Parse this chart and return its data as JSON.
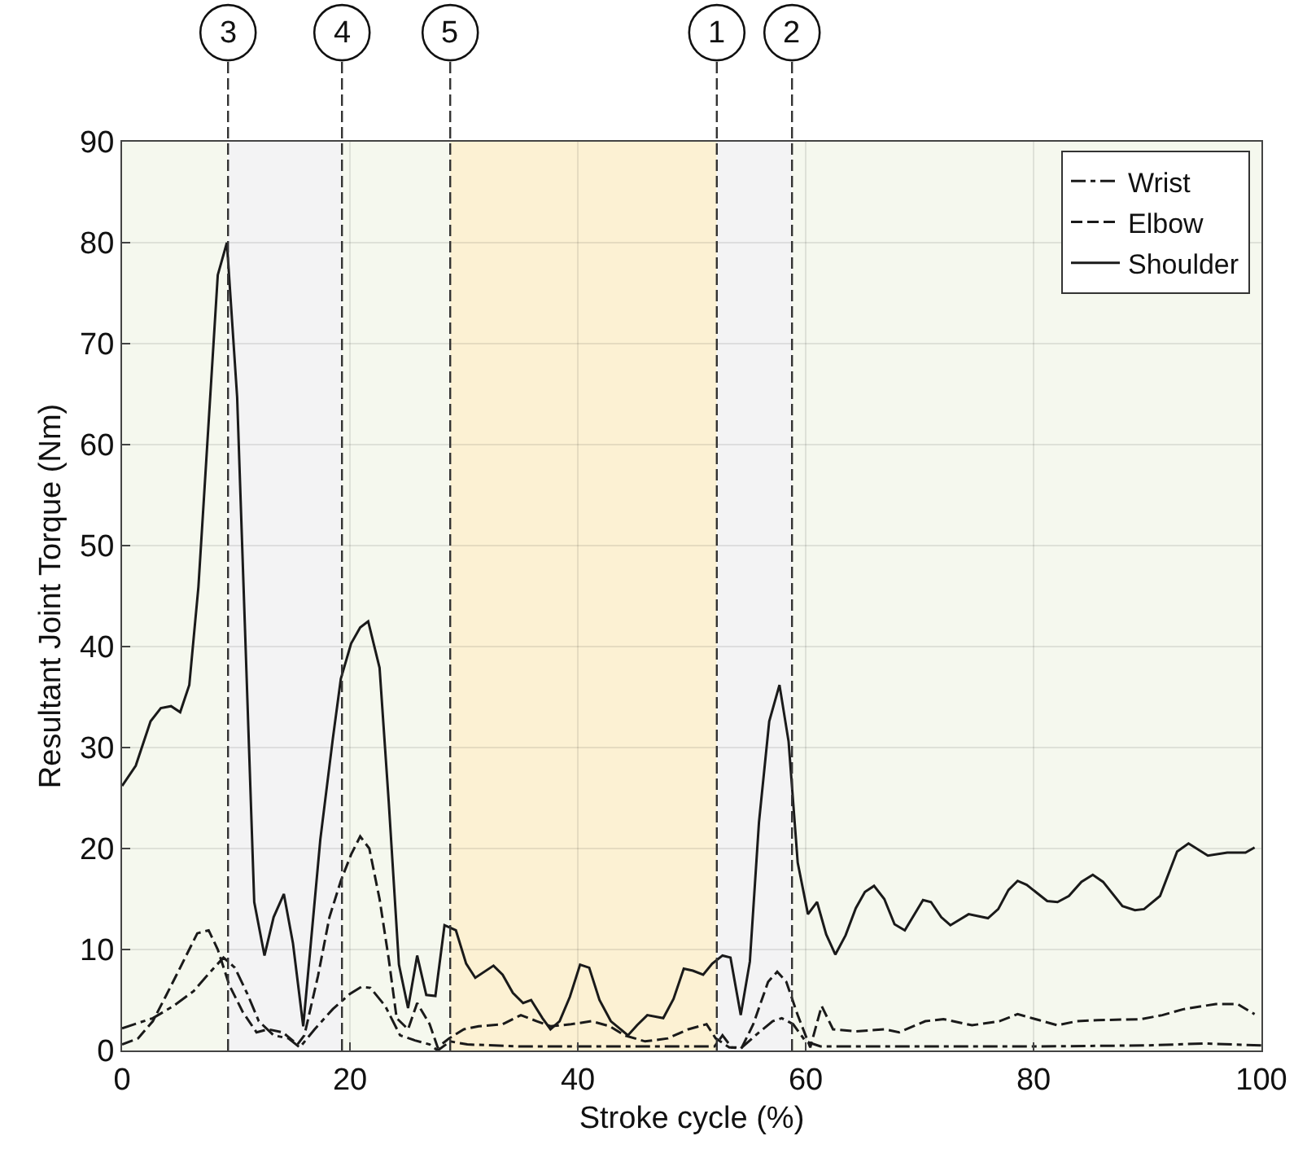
{
  "chart_data": {
    "type": "line",
    "xlabel": "Stroke cycle (%)",
    "ylabel": "Resultant Joint Torque (Nm)",
    "xlim": [
      0,
      100
    ],
    "ylim": [
      0,
      90
    ],
    "xticks": [
      0,
      20,
      40,
      60,
      80,
      100
    ],
    "yticks": [
      0,
      10,
      20,
      30,
      40,
      50,
      60,
      70,
      80,
      90
    ],
    "grid": true,
    "legend": "top right",
    "marker": "none",
    "series": [
      {
        "name": "Wrist",
        "color": "#1a1a1a",
        "line_style": "dashdot",
        "x": [
          0,
          2.7,
          4.5,
          6.3,
          7.6,
          8.9,
          9.9,
          11.0,
          12.0,
          13.3,
          14.6,
          15.6,
          16.9,
          18.5,
          20.0,
          21.0,
          21.8,
          23.1,
          24.4,
          25.7,
          27.0,
          27.7,
          28.8,
          30.3,
          35,
          40,
          45,
          50,
          52,
          52.7,
          53.5,
          54.3,
          55.6,
          57.1,
          57.9,
          58.9,
          60.0,
          61.3,
          70,
          80,
          90,
          95,
          100
        ],
        "values": [
          2.2,
          3.2,
          4.4,
          5.9,
          7.6,
          9.2,
          8.2,
          5.6,
          2.9,
          1.5,
          1.2,
          0.3,
          2.1,
          4.1,
          5.6,
          6.3,
          6.2,
          4.4,
          1.5,
          1.0,
          0.6,
          0,
          0.9,
          0.6,
          0.4,
          0.4,
          0.4,
          0.4,
          0.4,
          1.5,
          0.3,
          0.2,
          1.5,
          2.9,
          3.2,
          2.6,
          0.9,
          0.4,
          0.4,
          0.4,
          0.5,
          0.7,
          0.5
        ]
      },
      {
        "name": "Elbow",
        "color": "#1a1a1a",
        "line_style": "dashed",
        "x": [
          0,
          1.4,
          2.7,
          3.8,
          5.1,
          6.6,
          7.6,
          8.4,
          9.4,
          10.6,
          11.8,
          12.8,
          14.1,
          15.4,
          16.0,
          17.2,
          18.2,
          19.2,
          20.1,
          20.9,
          21.7,
          22.6,
          23.4,
          24.1,
          25.1,
          25.9,
          27.0,
          27.7,
          28.7,
          30.0,
          31.3,
          33.4,
          35.0,
          36.4,
          37.6,
          39.4,
          41.2,
          42.8,
          44.1,
          45.9,
          47.9,
          49.7,
          51.3,
          52.1,
          53.3,
          54.4,
          55.4,
          56.7,
          57.5,
          58.3,
          59.3,
          60.4,
          61.4,
          62.4,
          64.4,
          66.9,
          68.2,
          70.5,
          72.1,
          74.6,
          77.0,
          78.6,
          80.5,
          82.1,
          83.8,
          85.6,
          89.4,
          91.3,
          93.2,
          96.0,
          97.9,
          99.4
        ],
        "values": [
          0.6,
          1.2,
          2.9,
          5.3,
          8.2,
          11.6,
          11.9,
          10.0,
          6.5,
          3.8,
          1.8,
          2.1,
          1.8,
          0.6,
          1.5,
          7.4,
          13.2,
          16.8,
          19.4,
          21.2,
          20.0,
          15.0,
          9.1,
          3.2,
          2.1,
          4.7,
          2.6,
          0.3,
          1.2,
          2.1,
          2.4,
          2.6,
          3.5,
          2.9,
          2.4,
          2.6,
          2.9,
          2.4,
          1.5,
          0.9,
          1.2,
          2.1,
          2.6,
          1.2,
          0.3,
          0.3,
          2.6,
          6.8,
          7.8,
          6.8,
          3.5,
          0.3,
          4.4,
          2.1,
          1.9,
          2.1,
          1.8,
          2.9,
          3.1,
          2.5,
          2.9,
          3.6,
          3.0,
          2.5,
          2.9,
          3.0,
          3.1,
          3.5,
          4.1,
          4.6,
          4.6,
          3.6
        ]
      },
      {
        "name": "Shoulder",
        "color": "#1a1a1a",
        "line_style": "solid",
        "x": [
          0,
          1.2,
          2.5,
          3.4,
          4.3,
          5.1,
          5.9,
          6.7,
          8.4,
          9.2,
          10.1,
          11.6,
          12.5,
          13.3,
          14.2,
          15.0,
          15.9,
          17.4,
          18.5,
          19.2,
          20.1,
          20.9,
          21.6,
          22.6,
          23.4,
          24.3,
          25.1,
          25.9,
          26.7,
          27.5,
          28.3,
          29.3,
          30.2,
          31.0,
          32.6,
          33.4,
          34.3,
          35.2,
          35.9,
          36.9,
          37.6,
          38.4,
          39.3,
          40.2,
          41.0,
          41.9,
          42.9,
          44.4,
          45.2,
          46.1,
          47.5,
          48.4,
          49.3,
          50.1,
          51.0,
          51.8,
          52.7,
          53.4,
          54.3,
          55.1,
          55.9,
          56.8,
          57.7,
          58.5,
          59.3,
          60.2,
          61.0,
          61.8,
          62.6,
          63.5,
          64.4,
          65.2,
          66.0,
          66.9,
          67.8,
          68.7,
          70.3,
          71.0,
          71.9,
          72.7,
          74.3,
          76.0,
          76.9,
          77.8,
          78.6,
          79.4,
          81.2,
          82.1,
          83.1,
          84.2,
          85.2,
          86.1,
          87.8,
          88.9,
          89.7,
          91.1,
          92.6,
          93.6,
          95.3,
          97.0,
          98.6,
          99.4
        ],
        "values": [
          26.2,
          28.2,
          32.6,
          33.9,
          34.1,
          33.5,
          36.2,
          45.9,
          76.8,
          80.0,
          64.7,
          14.7,
          9.4,
          13.2,
          15.5,
          10.6,
          2.4,
          20.9,
          30.9,
          36.8,
          40.3,
          41.9,
          42.5,
          37.9,
          24.7,
          8.5,
          4.2,
          9.4,
          5.5,
          5.4,
          12.4,
          11.9,
          8.6,
          7.2,
          8.4,
          7.5,
          5.7,
          4.7,
          5.0,
          3.2,
          2.1,
          2.9,
          5.3,
          8.5,
          8.2,
          5.0,
          2.9,
          1.5,
          2.5,
          3.5,
          3.2,
          5.1,
          8.1,
          7.9,
          7.5,
          8.6,
          9.4,
          9.2,
          3.5,
          8.8,
          22.6,
          32.6,
          36.2,
          30.6,
          18.6,
          13.5,
          14.7,
          11.5,
          9.5,
          11.4,
          14.1,
          15.7,
          16.3,
          15.0,
          12.5,
          11.9,
          14.9,
          14.7,
          13.2,
          12.4,
          13.5,
          13.1,
          14.0,
          15.9,
          16.8,
          16.4,
          14.8,
          14.7,
          15.3,
          16.7,
          17.4,
          16.7,
          14.3,
          13.9,
          14.0,
          15.3,
          19.7,
          20.5,
          19.3,
          19.6,
          19.6,
          20.1
        ]
      }
    ],
    "bands": [
      {
        "axis": "x",
        "from": 0,
        "to": 9.3,
        "color": "#f5f8ee"
      },
      {
        "axis": "x",
        "from": 9.3,
        "to": 19.3,
        "color": "#f3f3f4"
      },
      {
        "axis": "x",
        "from": 19.3,
        "to": 28.8,
        "color": "#f5f8ee"
      },
      {
        "axis": "x",
        "from": 28.8,
        "to": 52.2,
        "color": "#fcf1d3"
      },
      {
        "axis": "x",
        "from": 52.2,
        "to": 58.8,
        "color": "#f3f3f4"
      },
      {
        "axis": "x",
        "from": 58.8,
        "to": 100,
        "color": "#f5f8ee"
      }
    ],
    "ref_lines": [
      {
        "axis": "x",
        "value": 9.3,
        "color": "#333333",
        "line_style": "dashed"
      },
      {
        "axis": "x",
        "value": 19.3,
        "color": "#333333",
        "line_style": "dashed"
      },
      {
        "axis": "x",
        "value": 28.8,
        "color": "#333333",
        "line_style": "dashed"
      },
      {
        "axis": "x",
        "value": 52.2,
        "color": "#333333",
        "line_style": "dashed"
      },
      {
        "axis": "x",
        "value": 58.8,
        "color": "#333333",
        "line_style": "dashed"
      }
    ],
    "annotations": [
      "3",
      "4",
      "5",
      "1",
      "2"
    ]
  }
}
